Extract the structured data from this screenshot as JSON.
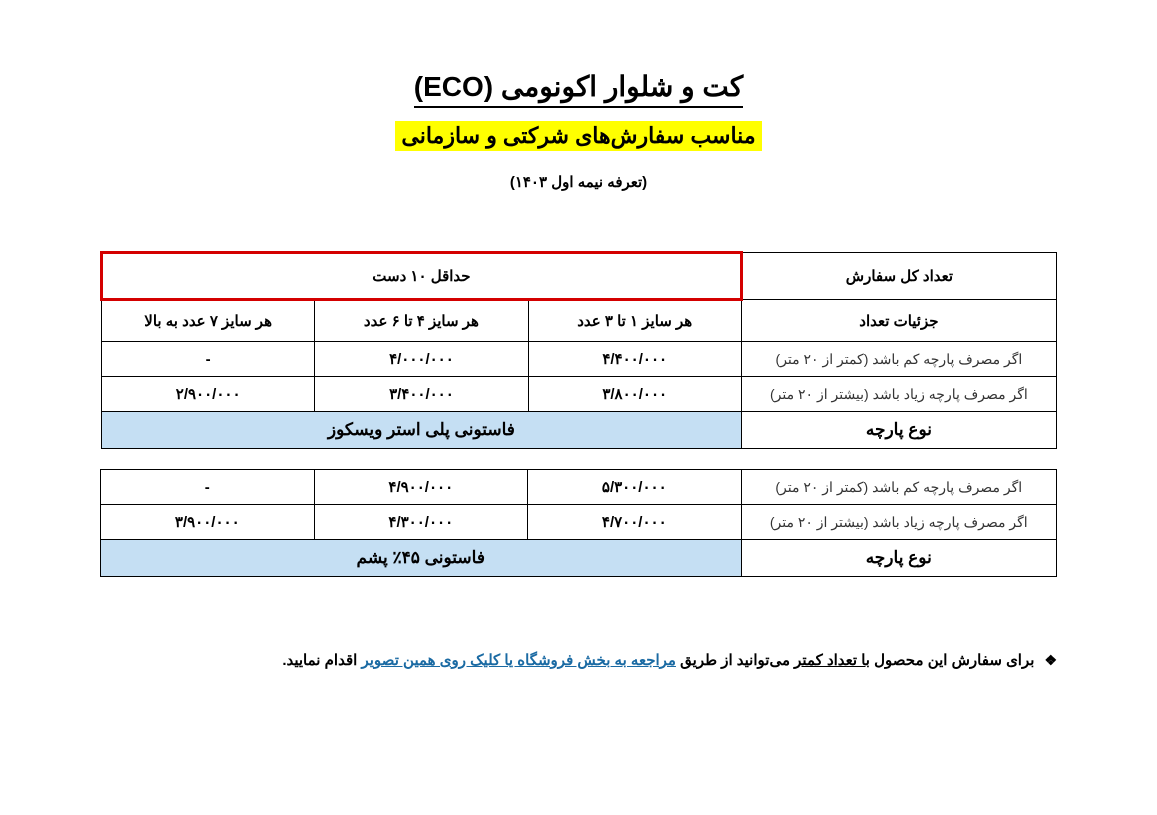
{
  "title": "کت و شلوار اکونومی (ECO)",
  "subtitle": "مناسب سفارش‌های شرکتی و سازمانی",
  "tariff": "(تعرفه نیمه اول ۱۴۰۳)",
  "headers": {
    "total_order": "تعداد کل سفارش",
    "min_ten": "حداقل ۱۰ دست",
    "details": "جزئیات تعداد",
    "col1": "هر سایز ۱ تا ۳ عدد",
    "col2": "هر سایز ۴ تا ۶ عدد",
    "col3": "هر سایز ۷ عدد به بالا",
    "fabric_type": "نوع پارچه"
  },
  "blocks": [
    {
      "rows": [
        {
          "label": "اگر مصرف پارچه کم باشد (کمتر از ۲۰ متر)",
          "c1": "۴/۴۰۰/۰۰۰",
          "c2": "۴/۰۰۰/۰۰۰",
          "c3": "-"
        },
        {
          "label": "اگر مصرف پارچه زیاد باشد (بیشتر از ۲۰ متر)",
          "c1": "۳/۸۰۰/۰۰۰",
          "c2": "۳/۴۰۰/۰۰۰",
          "c3": "۲/۹۰۰/۰۰۰"
        }
      ],
      "fabric": "فاستونی پلی استر ویسکوز"
    },
    {
      "rows": [
        {
          "label": "اگر مصرف پارچه کم باشد (کمتر از ۲۰ متر)",
          "c1": "۵/۳۰۰/۰۰۰",
          "c2": "۴/۹۰۰/۰۰۰",
          "c3": "-"
        },
        {
          "label": "اگر مصرف پارچه زیاد باشد (بیشتر از ۲۰ متر)",
          "c1": "۴/۷۰۰/۰۰۰",
          "c2": "۴/۳۰۰/۰۰۰",
          "c3": "۳/۹۰۰/۰۰۰"
        }
      ],
      "fabric": "فاستونی ۴۵٪ پشم"
    }
  ],
  "note": {
    "bullet": "❖",
    "t1": "برای سفارش این محصول ",
    "u1": "با تعداد کمتر",
    "t2": " می‌توانید از طریق ",
    "link": "مراجعه به بخش فروشگاه یا کلیک روی همین تصویر",
    "t3": " اقدام نمایید."
  },
  "colors": {
    "highlight": "#ffff00",
    "red_border": "#d40000",
    "fabric_bg": "#c5dff3",
    "link": "#1a6aa3"
  }
}
